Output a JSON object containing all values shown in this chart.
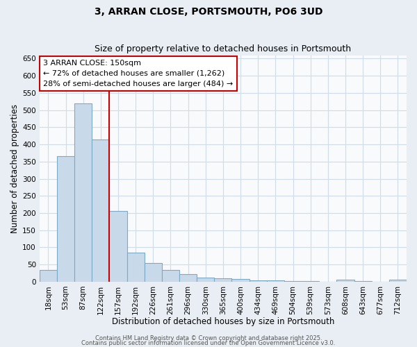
{
  "title": "3, ARRAN CLOSE, PORTSMOUTH, PO6 3UD",
  "subtitle": "Size of property relative to detached houses in Portsmouth",
  "xlabel": "Distribution of detached houses by size in Portsmouth",
  "ylabel": "Number of detached properties",
  "bar_labels": [
    "18sqm",
    "53sqm",
    "87sqm",
    "122sqm",
    "157sqm",
    "192sqm",
    "226sqm",
    "261sqm",
    "296sqm",
    "330sqm",
    "365sqm",
    "400sqm",
    "434sqm",
    "469sqm",
    "504sqm",
    "539sqm",
    "573sqm",
    "608sqm",
    "643sqm",
    "677sqm",
    "712sqm"
  ],
  "bar_values": [
    35,
    365,
    520,
    415,
    205,
    85,
    55,
    35,
    22,
    12,
    10,
    8,
    3,
    3,
    2,
    1,
    0,
    5,
    1,
    0,
    5
  ],
  "bar_color": "#c8daea",
  "bar_edge_color": "#7aaac8",
  "bar_edge_width": 0.8,
  "red_line_index": 4,
  "red_line_color": "#cc0000",
  "annotation_title": "3 ARRAN CLOSE: 150sqm",
  "annotation_line2": "← 72% of detached houses are smaller (1,262)",
  "annotation_line3": "28% of semi-detached houses are larger (484) →",
  "annotation_box_facecolor": "#ffffff",
  "annotation_box_edgecolor": "#cc0000",
  "ylim": [
    0,
    660
  ],
  "yticks": [
    0,
    50,
    100,
    150,
    200,
    250,
    300,
    350,
    400,
    450,
    500,
    550,
    600,
    650
  ],
  "fig_facecolor": "#e8eef4",
  "ax_facecolor": "#f8fafc",
  "grid_color": "#d0dce8",
  "footer_line1": "Contains HM Land Registry data © Crown copyright and database right 2025.",
  "footer_line2": "Contains public sector information licensed under the Open Government Licence v3.0.",
  "title_fontsize": 10,
  "subtitle_fontsize": 9,
  "axis_label_fontsize": 8.5,
  "tick_fontsize": 7.5,
  "annotation_fontsize": 8,
  "footer_fontsize": 6
}
